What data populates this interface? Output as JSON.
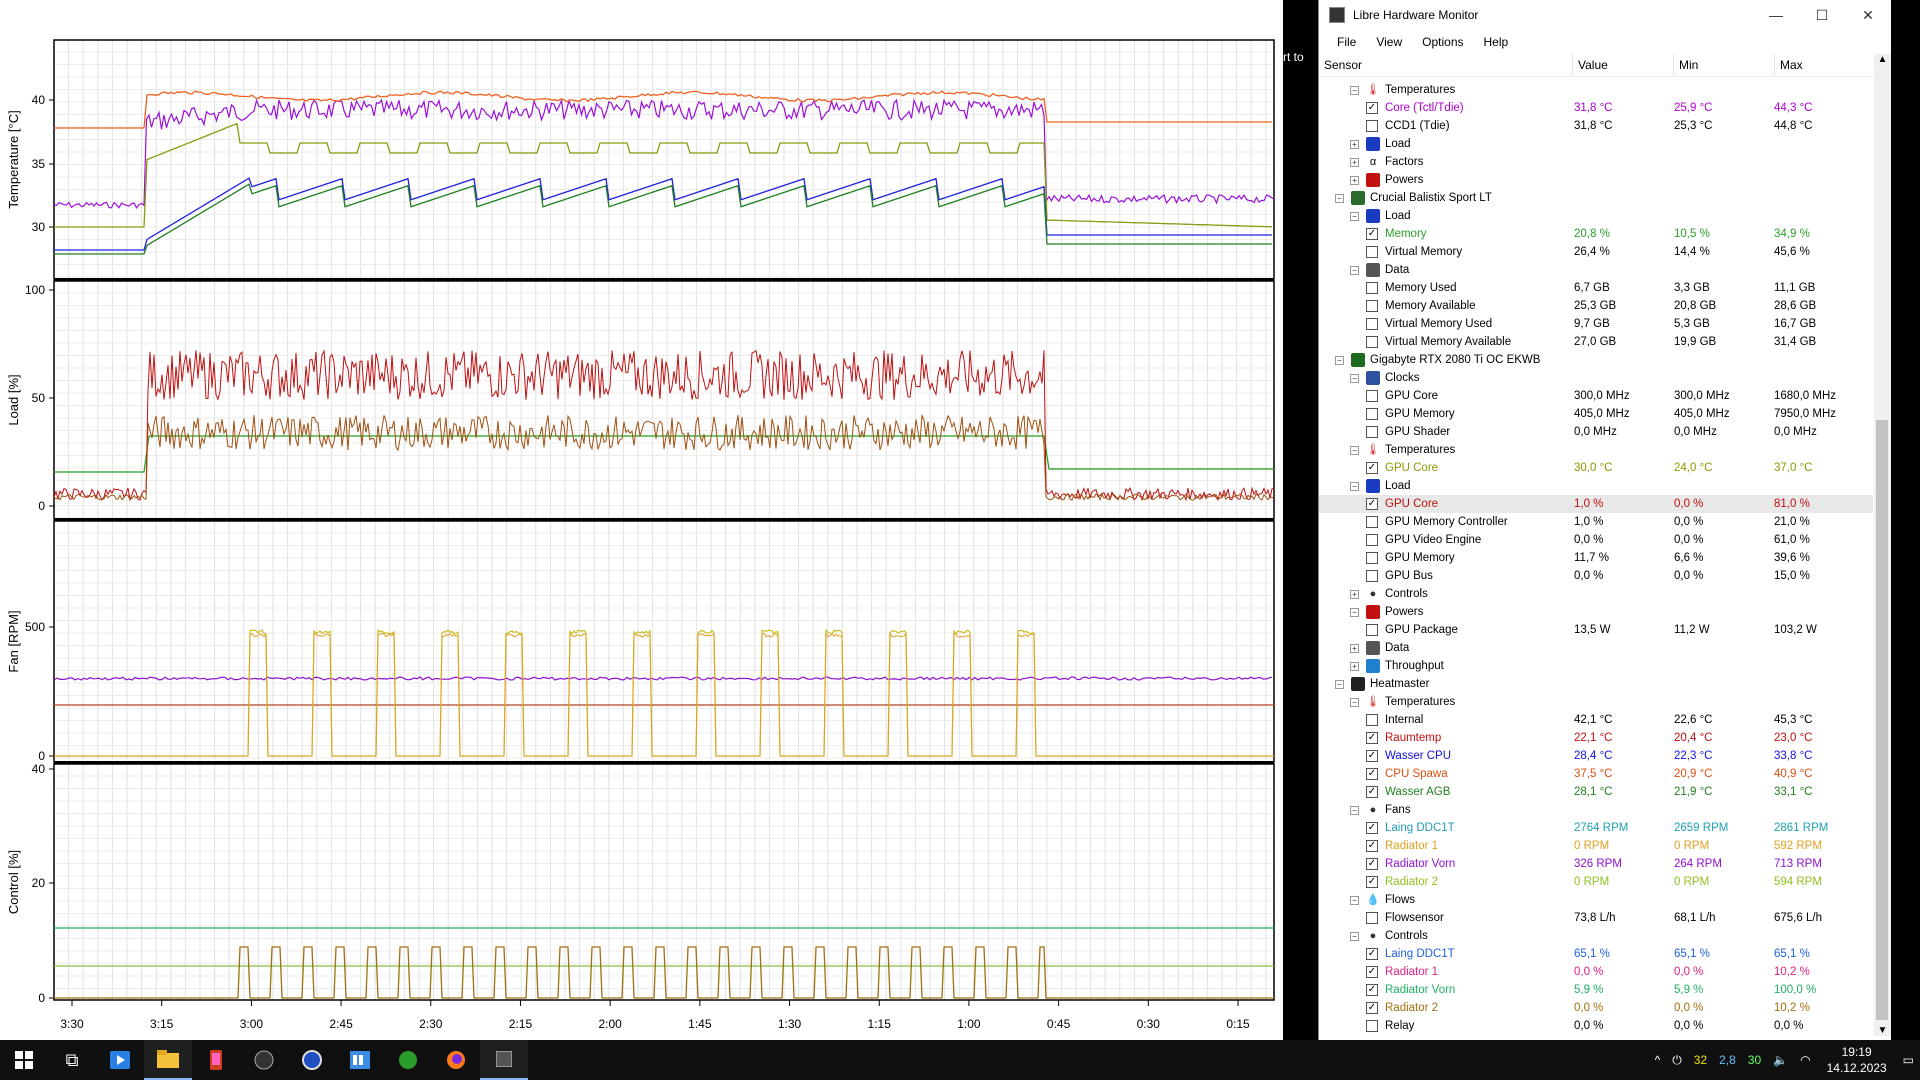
{
  "plot": {
    "panels": [
      {
        "ylabel": "Temperature [°C]",
        "yticks": [
          "40",
          "35",
          "30"
        ]
      },
      {
        "ylabel": "Load [%]",
        "yticks": [
          "100",
          "50",
          "0"
        ]
      },
      {
        "ylabel": "Fan [RPM]",
        "yticks": [
          "500",
          "0"
        ]
      },
      {
        "ylabel": "Control [%]",
        "yticks": [
          "40",
          "20",
          "0"
        ]
      }
    ],
    "xticks": [
      "3:30",
      "3:15",
      "3:00",
      "2:45",
      "2:30",
      "2:15",
      "2:00",
      "1:45",
      "1:30",
      "1:15",
      "1:00",
      "0:45",
      "0:30",
      "0:15"
    ],
    "side_text": "rt to"
  },
  "window": {
    "title": "Libre Hardware Monitor",
    "min": "—",
    "max": "☐",
    "close": "✕",
    "menu": [
      "File",
      "View",
      "Options",
      "Help"
    ],
    "columns": {
      "sensor": "Sensor",
      "value": "Value",
      "min": "Min",
      "max": "Max"
    }
  },
  "rows": [
    {
      "d": 2,
      "t": "Temperatures",
      "icon": "thermometer",
      "exp": "−"
    },
    {
      "d": 3,
      "t": "Core (Tctl/Tdie)",
      "v": "31,8 °C",
      "mn": "25,9 °C",
      "mx": "44,3 °C",
      "chk": true,
      "color": "#b000d0"
    },
    {
      "d": 3,
      "t": "CCD1 (Tdie)",
      "v": "31,8 °C",
      "mn": "25,3 °C",
      "mx": "44,8 °C",
      "chk": false
    },
    {
      "d": 2,
      "t": "Load",
      "icon": "load",
      "exp": "+"
    },
    {
      "d": 2,
      "t": "Factors",
      "icon": "factors",
      "exp": "+"
    },
    {
      "d": 2,
      "t": "Powers",
      "icon": "power",
      "exp": "+"
    },
    {
      "d": 1,
      "t": "Crucial Balistix Sport LT",
      "icon": "ram",
      "exp": "−"
    },
    {
      "d": 2,
      "t": "Load",
      "icon": "load",
      "exp": "−"
    },
    {
      "d": 3,
      "t": "Memory",
      "v": "20,8 %",
      "mn": "10,5 %",
      "mx": "34,9 %",
      "chk": true,
      "color": "#2aa02a"
    },
    {
      "d": 3,
      "t": "Virtual Memory",
      "v": "26,4 %",
      "mn": "14,4 %",
      "mx": "45,6 %",
      "chk": false
    },
    {
      "d": 2,
      "t": "Data",
      "icon": "data",
      "exp": "−"
    },
    {
      "d": 3,
      "t": "Memory Used",
      "v": "6,7 GB",
      "mn": "3,3 GB",
      "mx": "11,1 GB",
      "chk": false
    },
    {
      "d": 3,
      "t": "Memory Available",
      "v": "25,3 GB",
      "mn": "20,8 GB",
      "mx": "28,6 GB",
      "chk": false
    },
    {
      "d": 3,
      "t": "Virtual Memory Used",
      "v": "9,7 GB",
      "mn": "5,3 GB",
      "mx": "16,7 GB",
      "chk": false
    },
    {
      "d": 3,
      "t": "Virtual Memory Available",
      "v": "27,0 GB",
      "mn": "19,9 GB",
      "mx": "31,4 GB",
      "chk": false
    },
    {
      "d": 1,
      "t": "Gigabyte RTX 2080 Ti OC EKWB",
      "icon": "gpu",
      "exp": "−"
    },
    {
      "d": 2,
      "t": "Clocks",
      "icon": "clock",
      "exp": "−"
    },
    {
      "d": 3,
      "t": "GPU Core",
      "v": "300,0 MHz",
      "mn": "300,0 MHz",
      "mx": "1680,0 MHz",
      "chk": false
    },
    {
      "d": 3,
      "t": "GPU Memory",
      "v": "405,0 MHz",
      "mn": "405,0 MHz",
      "mx": "7950,0 MHz",
      "chk": false
    },
    {
      "d": 3,
      "t": "GPU Shader",
      "v": "0,0 MHz",
      "mn": "0,0 MHz",
      "mx": "0,0 MHz",
      "chk": false
    },
    {
      "d": 2,
      "t": "Temperatures",
      "icon": "thermometer",
      "exp": "−"
    },
    {
      "d": 3,
      "t": "GPU Core",
      "v": "30,0 °C",
      "mn": "24,0 °C",
      "mx": "37,0 °C",
      "chk": true,
      "color": "#8a9a00"
    },
    {
      "d": 2,
      "t": "Load",
      "icon": "load",
      "exp": "−"
    },
    {
      "d": 3,
      "t": "GPU Core",
      "v": "1,0 %",
      "mn": "0,0 %",
      "mx": "81,0 %",
      "chk": true,
      "color": "#c01010",
      "sel": true
    },
    {
      "d": 3,
      "t": "GPU Memory Controller",
      "v": "1,0 %",
      "mn": "0,0 %",
      "mx": "21,0 %",
      "chk": false
    },
    {
      "d": 3,
      "t": "GPU Video Engine",
      "v": "0,0 %",
      "mn": "0,0 %",
      "mx": "61,0 %",
      "chk": false
    },
    {
      "d": 3,
      "t": "GPU Memory",
      "v": "11,7 %",
      "mn": "6,6 %",
      "mx": "39,6 %",
      "chk": false
    },
    {
      "d": 3,
      "t": "GPU Bus",
      "v": "0,0 %",
      "mn": "0,0 %",
      "mx": "15,0 %",
      "chk": false
    },
    {
      "d": 2,
      "t": "Controls",
      "icon": "fan",
      "exp": "+"
    },
    {
      "d": 2,
      "t": "Powers",
      "icon": "power",
      "exp": "−"
    },
    {
      "d": 3,
      "t": "GPU Package",
      "v": "13,5 W",
      "mn": "11,2 W",
      "mx": "103,2 W",
      "chk": false
    },
    {
      "d": 2,
      "t": "Data",
      "icon": "data",
      "exp": "+"
    },
    {
      "d": 2,
      "t": "Throughput",
      "icon": "throughput",
      "exp": "+"
    },
    {
      "d": 1,
      "t": "Heatmaster",
      "icon": "heatmaster",
      "exp": "−"
    },
    {
      "d": 2,
      "t": "Temperatures",
      "icon": "thermometer",
      "exp": "−"
    },
    {
      "d": 3,
      "t": "Internal",
      "v": "42,1 °C",
      "mn": "22,6 °C",
      "mx": "45,3 °C",
      "chk": false
    },
    {
      "d": 3,
      "t": "Raumtemp",
      "v": "22,1 °C",
      "mn": "20,4 °C",
      "mx": "23,0 °C",
      "chk": true,
      "color": "#c01010"
    },
    {
      "d": 3,
      "t": "Wasser CPU",
      "v": "28,4 °C",
      "mn": "22,3 °C",
      "mx": "33,8 °C",
      "chk": true,
      "color": "#1010e0"
    },
    {
      "d": 3,
      "t": "CPU Spawa",
      "v": "37,5 °C",
      "mn": "20,9 °C",
      "mx": "40,9 °C",
      "chk": true,
      "color": "#e05010"
    },
    {
      "d": 3,
      "t": "Wasser AGB",
      "v": "28,1 °C",
      "mn": "21,9 °C",
      "mx": "33,1 °C",
      "chk": true,
      "color": "#208020"
    },
    {
      "d": 2,
      "t": "Fans",
      "icon": "fan",
      "exp": "−"
    },
    {
      "d": 3,
      "t": "Laing DDC1T",
      "v": "2764 RPM",
      "mn": "2659 RPM",
      "mx": "2861 RPM",
      "chk": true,
      "color": "#20a0b0"
    },
    {
      "d": 3,
      "t": "Radiator 1",
      "v": "0 RPM",
      "mn": "0 RPM",
      "mx": "592 RPM",
      "chk": true,
      "color": "#e0a020"
    },
    {
      "d": 3,
      "t": "Radiator Vorn",
      "v": "326 RPM",
      "mn": "264 RPM",
      "mx": "713 RPM",
      "chk": true,
      "color": "#9010d0"
    },
    {
      "d": 3,
      "t": "Radiator 2",
      "v": "0 RPM",
      "mn": "0 RPM",
      "mx": "594 RPM",
      "chk": true,
      "color": "#90c020"
    },
    {
      "d": 2,
      "t": "Flows",
      "icon": "drop",
      "exp": "−"
    },
    {
      "d": 3,
      "t": "Flowsensor",
      "v": "73,8 L/h",
      "mn": "68,1 L/h",
      "mx": "675,6 L/h",
      "chk": false
    },
    {
      "d": 2,
      "t": "Controls",
      "icon": "fan",
      "exp": "−"
    },
    {
      "d": 3,
      "t": "Laing DDC1T",
      "v": "65,1 %",
      "mn": "65,1 %",
      "mx": "65,1 %",
      "chk": true,
      "color": "#2060e0"
    },
    {
      "d": 3,
      "t": "Radiator 1",
      "v": "0,0 %",
      "mn": "0,0 %",
      "mx": "10,2 %",
      "chk": true,
      "color": "#e02080"
    },
    {
      "d": 3,
      "t": "Radiator Vorn",
      "v": "5,9 %",
      "mn": "5,9 %",
      "mx": "100,0 %",
      "chk": true,
      "color": "#20b060"
    },
    {
      "d": 3,
      "t": "Radiator 2",
      "v": "0,0 %",
      "mn": "0,0 %",
      "mx": "10,2 %",
      "chk": true,
      "color": "#a07010"
    },
    {
      "d": 3,
      "t": "Relay",
      "v": "0,0 %",
      "mn": "0,0 %",
      "mx": "0,0 %",
      "chk": false
    }
  ],
  "taskbar": {
    "tray_values": [
      "32",
      "2,8",
      "30"
    ],
    "tray_colors": [
      "#f0e000",
      "#60c0ff",
      "#60ff60"
    ],
    "time": "19:19",
    "date": "14.12.2023"
  },
  "colors": {
    "accent": "#8ab4f8",
    "grid": "#d8d8d8"
  }
}
